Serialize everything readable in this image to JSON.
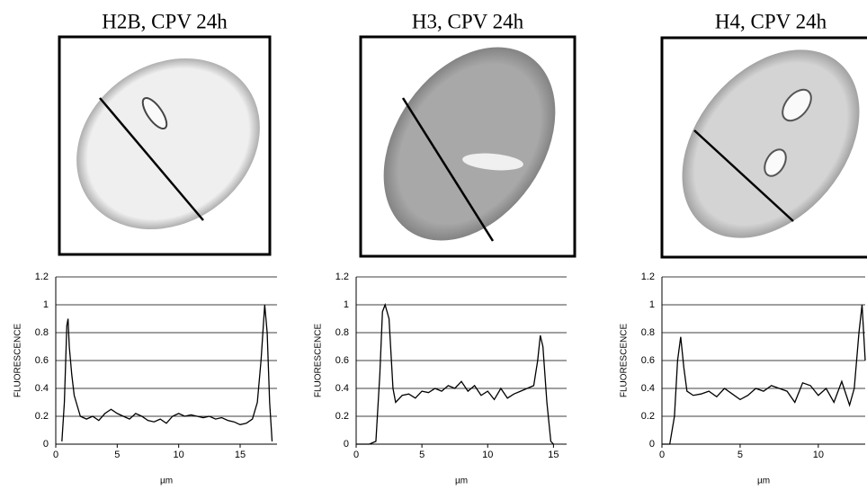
{
  "chart_data": [
    {
      "type": "line",
      "title": "H2B, CPV 24h",
      "ylabel": "FLUORESCENCE",
      "xlabel": "µm",
      "color": "#000000",
      "grid": true,
      "x": [
        0.5,
        0.7,
        0.9,
        1.0,
        1.1,
        1.3,
        1.5,
        2,
        2.5,
        3,
        3.5,
        4,
        4.5,
        5,
        5.5,
        6,
        6.5,
        7,
        7.5,
        8,
        8.5,
        9,
        9.5,
        10,
        10.5,
        11,
        11.5,
        12,
        12.5,
        13,
        13.5,
        14,
        14.5,
        15,
        15.5,
        16,
        16.4,
        16.7,
        17,
        17.2,
        17.4,
        17.6
      ],
      "values": [
        0.02,
        0.3,
        0.85,
        0.9,
        0.7,
        0.5,
        0.35,
        0.2,
        0.18,
        0.2,
        0.17,
        0.22,
        0.25,
        0.22,
        0.2,
        0.18,
        0.22,
        0.2,
        0.17,
        0.16,
        0.18,
        0.15,
        0.2,
        0.22,
        0.2,
        0.21,
        0.2,
        0.19,
        0.2,
        0.18,
        0.19,
        0.17,
        0.16,
        0.14,
        0.15,
        0.18,
        0.3,
        0.6,
        1.0,
        0.8,
        0.3,
        0.02
      ],
      "xlim": [
        0,
        18
      ],
      "xticks": [
        0,
        5,
        10,
        15
      ],
      "ylim": [
        0,
        1.2
      ],
      "yticks": [
        0,
        0.2,
        0.4,
        0.6,
        0.8,
        1,
        1.2
      ]
    },
    {
      "type": "line",
      "title": "H3, CPV 24h",
      "ylabel": "FLUORESCENCE",
      "xlabel": "µm",
      "color": "#000000",
      "grid": true,
      "x": [
        0,
        1,
        1.5,
        1.8,
        2,
        2.2,
        2.5,
        2.8,
        3,
        3.5,
        4,
        4.5,
        5,
        5.5,
        6,
        6.5,
        7,
        7.5,
        8,
        8.5,
        9,
        9.5,
        10,
        10.5,
        11,
        11.5,
        12,
        12.5,
        13,
        13.5,
        13.8,
        14,
        14.2,
        14.5,
        14.8,
        15
      ],
      "values": [
        0,
        0,
        0.02,
        0.5,
        0.95,
        1.0,
        0.9,
        0.4,
        0.3,
        0.35,
        0.36,
        0.33,
        0.38,
        0.37,
        0.4,
        0.38,
        0.42,
        0.4,
        0.45,
        0.38,
        0.42,
        0.35,
        0.38,
        0.32,
        0.4,
        0.33,
        0.36,
        0.38,
        0.4,
        0.42,
        0.6,
        0.78,
        0.7,
        0.3,
        0.02,
        0
      ],
      "xlim": [
        0,
        16
      ],
      "xticks": [
        0,
        5,
        10,
        15
      ],
      "ylim": [
        0,
        1.2
      ],
      "yticks": [
        0,
        0.2,
        0.4,
        0.6,
        0.8,
        1,
        1.2
      ]
    },
    {
      "type": "line",
      "title": "H4, CPV 24h",
      "ylabel": "FLUORESCENCE",
      "xlabel": "µm",
      "color": "#000000",
      "grid": true,
      "x": [
        0,
        0.5,
        0.8,
        1.0,
        1.2,
        1.4,
        1.6,
        2,
        2.5,
        3,
        3.5,
        4,
        4.5,
        5,
        5.5,
        6,
        6.5,
        7,
        7.5,
        8,
        8.5,
        9,
        9.5,
        10,
        10.5,
        11,
        11.5,
        12,
        12.3,
        12.6,
        12.8,
        13
      ],
      "values": [
        0,
        0,
        0.2,
        0.6,
        0.77,
        0.55,
        0.38,
        0.35,
        0.36,
        0.38,
        0.34,
        0.4,
        0.36,
        0.32,
        0.35,
        0.4,
        0.38,
        0.42,
        0.4,
        0.38,
        0.3,
        0.44,
        0.42,
        0.35,
        0.4,
        0.3,
        0.45,
        0.28,
        0.4,
        0.8,
        1.0,
        0.6
      ],
      "xlim": [
        0,
        13
      ],
      "xticks": [
        0,
        5,
        10
      ],
      "ylim": [
        0,
        1.2
      ],
      "yticks": [
        0,
        0.2,
        0.4,
        0.6,
        0.8,
        1,
        1.2
      ]
    }
  ]
}
